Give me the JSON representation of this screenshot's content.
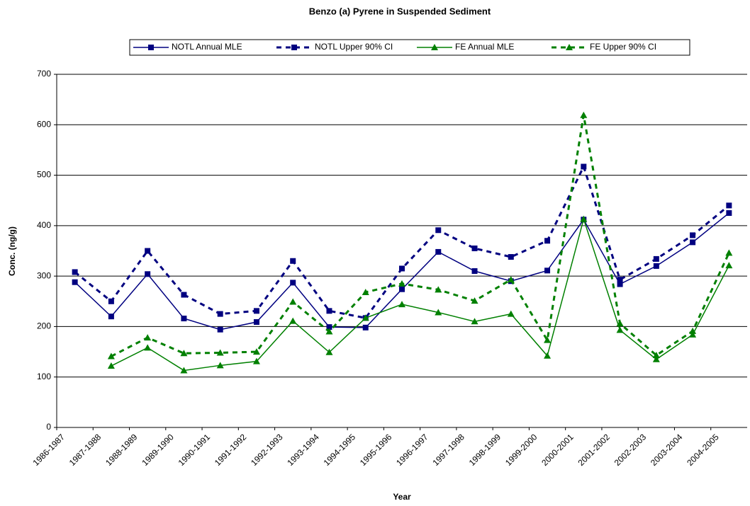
{
  "chart_data": {
    "type": "line",
    "title": "Benzo (a) Pyrene in Suspended Sediment",
    "x_label": "Year",
    "y_label": "Conc. (ng/g)",
    "categories": [
      "1986-1987",
      "1987-1988",
      "1988-1989",
      "1989-1990",
      "1990-1991",
      "1991-1992",
      "1992-1993",
      "1993-1994",
      "1994-1995",
      "1995-1996",
      "1996-1997",
      "1997-1998",
      "1998-1999",
      "1999-2000",
      "2000-2001",
      "2001-2002",
      "2002-2003",
      "2003-2004",
      "2004-2005"
    ],
    "series": [
      {
        "name": "NOTL Annual MLE",
        "color": "#000080",
        "line_style": "solid",
        "marker": "square",
        "values": [
          288,
          220,
          304,
          216,
          194,
          209,
          287,
          199,
          198,
          274,
          348,
          310,
          290,
          311,
          412,
          284,
          320,
          367,
          425
        ]
      },
      {
        "name": "NOTL Upper 90% CI",
        "color": "#000080",
        "line_style": "dashed",
        "marker": "square",
        "values": [
          308,
          250,
          350,
          263,
          225,
          231,
          330,
          231,
          217,
          315,
          391,
          355,
          338,
          370,
          517,
          293,
          334,
          381,
          440
        ]
      },
      {
        "name": "FE Annual MLE",
        "color": "#008000",
        "line_style": "solid",
        "marker": "triangle",
        "values": [
          null,
          122,
          158,
          113,
          123,
          131,
          211,
          149,
          217,
          244,
          228,
          210,
          225,
          142,
          413,
          193,
          135,
          184,
          321
        ]
      },
      {
        "name": "FE Upper 90% CI",
        "color": "#008000",
        "line_style": "dashed",
        "marker": "triangle",
        "values": [
          null,
          141,
          178,
          147,
          148,
          150,
          249,
          190,
          268,
          285,
          273,
          251,
          293,
          173,
          619,
          206,
          143,
          191,
          346
        ]
      }
    ],
    "ylim": [
      0,
      700
    ],
    "yticks": [
      0,
      100,
      200,
      300,
      400,
      500,
      600,
      700
    ],
    "grid": true,
    "legend": "top"
  }
}
